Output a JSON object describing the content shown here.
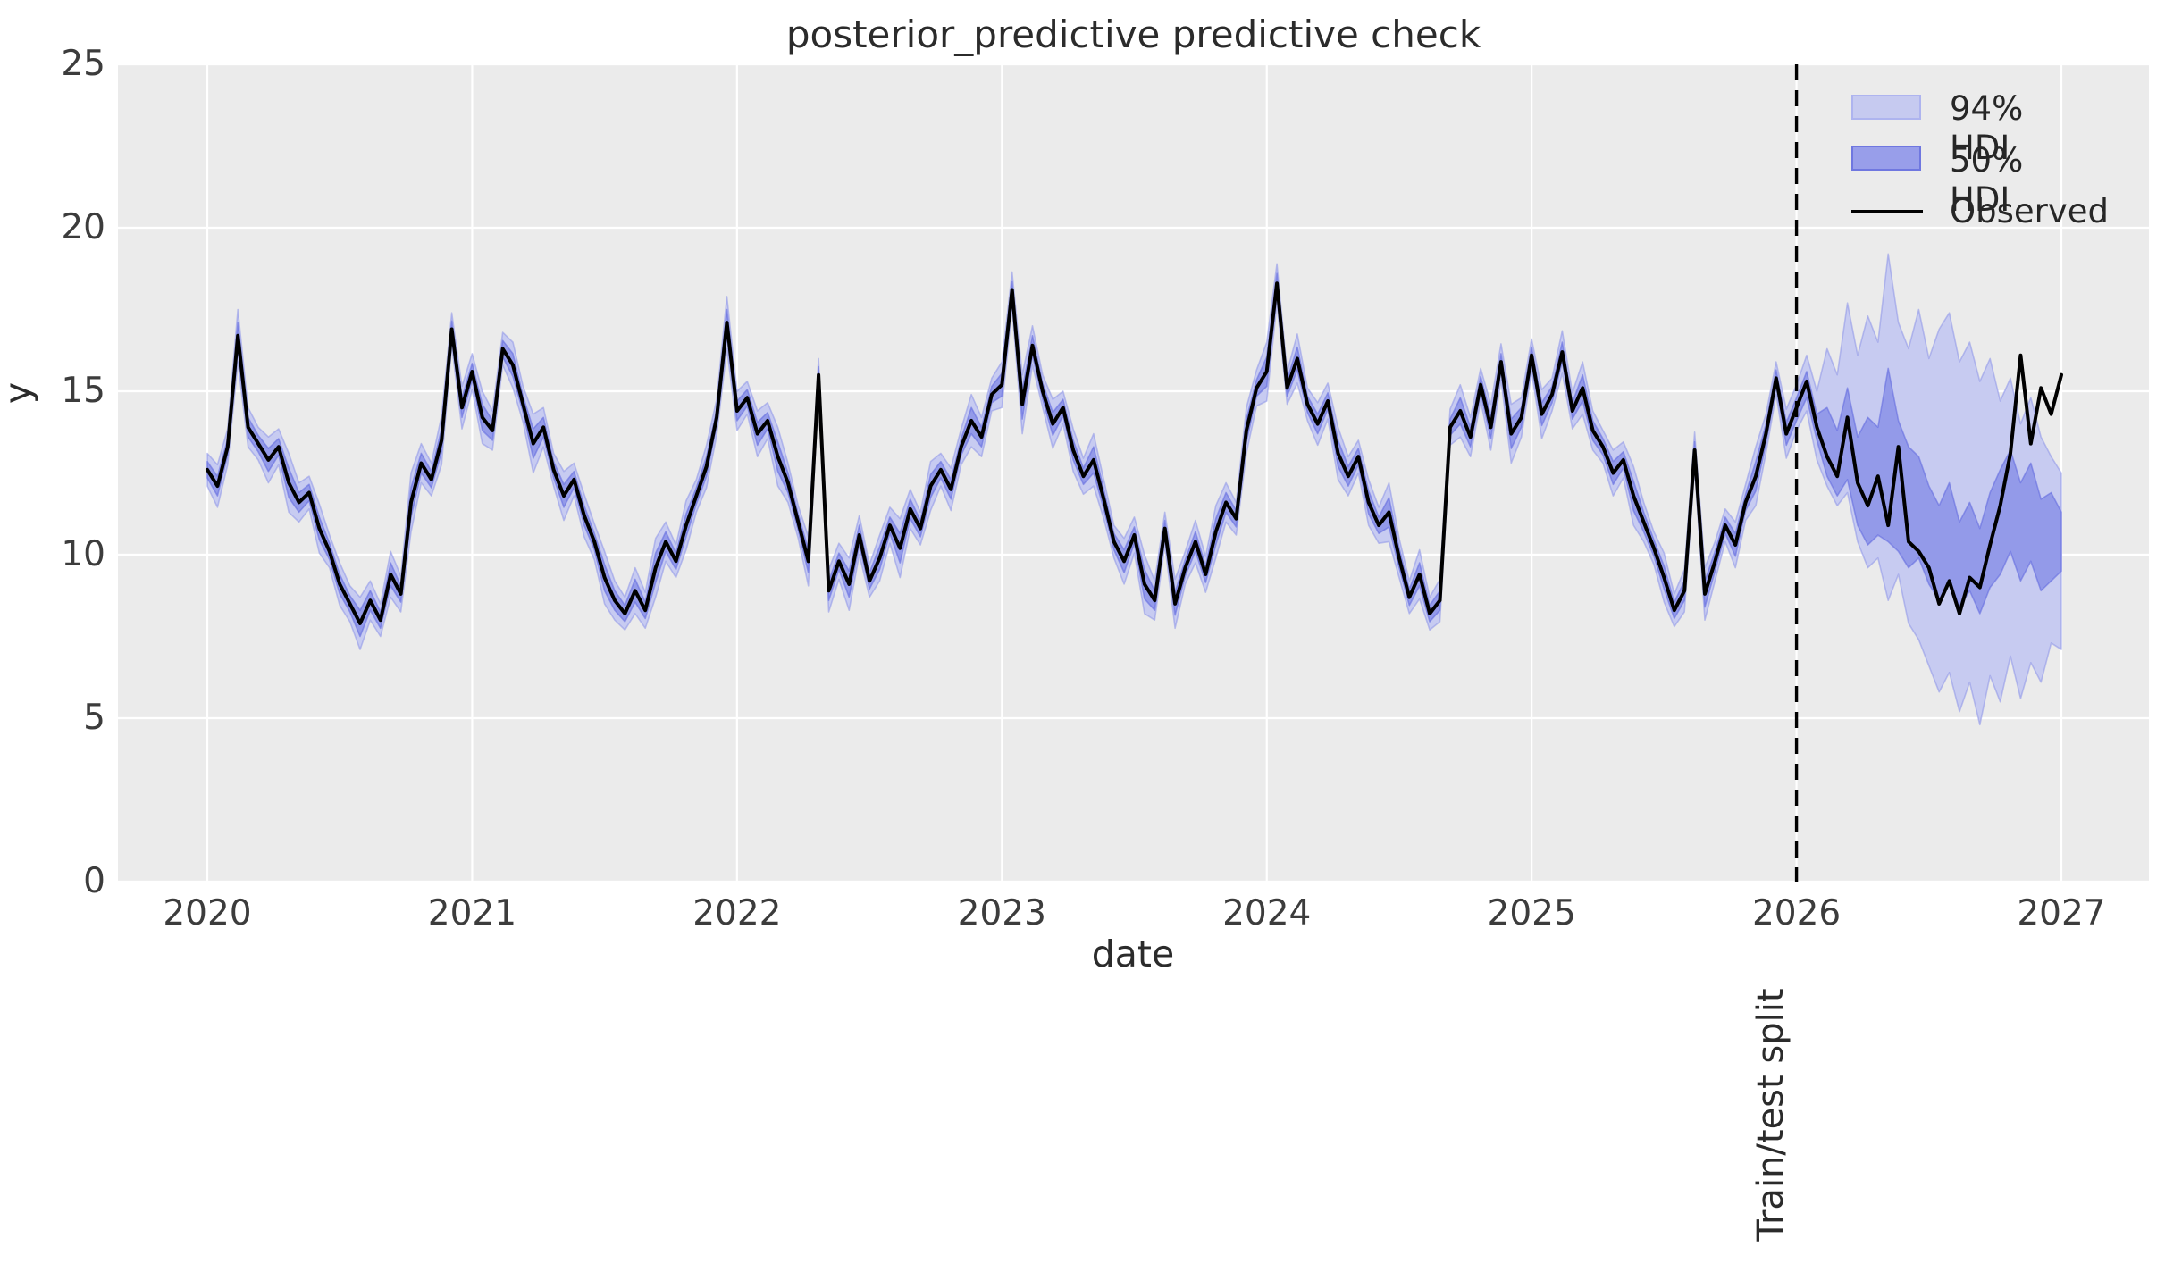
{
  "title": "posterior_predictive predictive check",
  "axes": {
    "xlabel": "date",
    "ylabel": "y",
    "x_tick_labels": [
      "2020",
      "2021",
      "2022",
      "2023",
      "2024",
      "2025",
      "2026",
      "2027"
    ],
    "x_ticks": [
      2020,
      2021,
      2022,
      2023,
      2024,
      2025,
      2026,
      2027
    ],
    "y_tick_labels": [
      "0",
      "5",
      "10",
      "15",
      "20",
      "25"
    ],
    "y_ticks": [
      0,
      5,
      10,
      15,
      20,
      25
    ],
    "ylim": [
      0,
      25
    ],
    "xlim": [
      2019.663,
      2027.331
    ],
    "grid": "white-on-gray"
  },
  "legend": {
    "position": "upper-right",
    "items": [
      {
        "label": "94% HDI",
        "type": "patch",
        "fill": "#c6caf0",
        "edge": "#aeb4ef"
      },
      {
        "label": "50% HDI",
        "type": "patch",
        "fill": "#989eea",
        "edge": "#6f77e0"
      },
      {
        "label": "Observed",
        "type": "line",
        "color": "#000000"
      }
    ]
  },
  "split": {
    "x": 2026,
    "label": "Train/test split",
    "line_style": "dashed",
    "line_color": "#000000"
  },
  "colors": {
    "figure_bg": "#ffffff",
    "plot_bg": "#ebebeb",
    "grid": "#ffffff",
    "hdi94_fill": "#c7cbf1",
    "hdi94_edge": "#8c93e8",
    "hdi50_fill": "#939ae9",
    "hdi50_edge": "#646ce0",
    "observed_line": "#000000",
    "text": "#2b2b2b",
    "tick_text": "#3c3c3c"
  },
  "chart_data": {
    "type": "line",
    "title": "posterior_predictive predictive check",
    "xlabel": "date",
    "ylabel": "y",
    "x_unit": "decimal years, weekly-ish sampling",
    "x_start": 2020.0,
    "x_step": 0.0384615,
    "n_points": 183,
    "train_test_split_x": 2026.0,
    "observed_train": [
      12.6,
      12.1,
      13.3,
      16.7,
      13.9,
      13.4,
      12.9,
      13.3,
      12.2,
      11.6,
      11.9,
      10.8,
      10.1,
      9.1,
      8.5,
      7.9,
      8.6,
      8.0,
      9.4,
      8.8,
      11.6,
      12.8,
      12.3,
      13.5,
      16.9,
      14.5,
      15.6,
      14.2,
      13.8,
      16.3,
      15.8,
      14.6,
      13.4,
      13.9,
      12.6,
      11.8,
      12.3,
      11.2,
      10.4,
      9.3,
      8.6,
      8.2,
      8.9,
      8.3,
      9.6,
      10.4,
      9.8,
      10.9,
      11.8,
      12.7,
      14.2,
      17.1,
      14.4,
      14.8,
      13.7,
      14.1,
      13.0,
      12.2,
      11.0,
      9.8,
      15.5,
      8.9,
      9.8,
      9.1,
      10.6,
      9.2,
      9.9,
      10.9,
      10.2,
      11.4,
      10.8,
      12.1,
      12.6,
      12.0,
      13.3,
      14.1,
      13.6,
      14.9,
      15.2,
      18.1,
      14.6,
      16.4,
      15.0,
      14.0,
      14.5,
      13.2,
      12.4,
      12.9,
      11.7,
      10.4,
      9.8,
      10.6,
      9.1,
      8.6,
      10.8,
      8.5,
      9.6,
      10.4,
      9.4,
      10.7,
      11.6,
      11.1,
      13.8,
      15.1,
      15.6,
      18.3,
      15.1,
      16.0,
      14.6,
      14.0,
      14.7,
      13.1,
      12.4,
      13.0,
      11.6,
      10.9,
      11.3,
      9.9,
      8.7,
      9.4,
      8.2,
      8.6,
      13.9,
      14.4,
      13.6,
      15.2,
      13.9,
      15.9,
      13.7,
      14.2,
      16.1,
      14.3,
      14.9,
      16.2,
      14.4,
      15.1,
      13.8,
      13.3,
      12.5,
      12.9,
      11.8,
      11.0,
      10.2,
      9.3,
      8.3,
      8.9,
      13.2,
      8.8,
      9.8,
      10.9,
      10.3,
      11.6,
      12.4,
      13.7,
      15.4,
      13.7
    ],
    "hdi94_halfwidth_train": {
      "pattern": [
        0.5,
        0.65,
        0.55,
        0.8,
        0.6,
        0.5,
        0.7,
        0.55,
        0.9,
        0.6,
        0.5,
        0.75
      ],
      "repeat": 13
    },
    "hdi50_halfwidth_train": {
      "pattern": [
        0.25,
        0.3,
        0.25,
        0.4,
        0.3,
        0.25,
        0.35,
        0.25,
        0.45,
        0.3,
        0.25,
        0.35
      ],
      "repeat": 13
    },
    "forecast": {
      "x_start": 2026.0,
      "observed": [
        14.5,
        15.3,
        13.9,
        13.0,
        12.4,
        14.2,
        12.2,
        11.5,
        12.4,
        10.9,
        13.3,
        10.4,
        10.1,
        9.6,
        8.5,
        9.2,
        8.2,
        9.3,
        9.0,
        10.3,
        11.5,
        13.1,
        16.1,
        13.4,
        15.1,
        14.3,
        15.5
      ],
      "hdi94_upper": [
        15.2,
        16.1,
        15.0,
        16.3,
        15.5,
        17.7,
        16.1,
        17.3,
        16.5,
        19.2,
        17.1,
        16.3,
        17.5,
        16.0,
        16.9,
        17.4,
        15.9,
        16.5,
        15.3,
        16.0,
        14.7,
        15.4,
        14.0,
        14.8,
        13.6,
        13.0,
        12.5
      ],
      "hdi94_lower": [
        13.8,
        14.4,
        12.9,
        12.1,
        11.5,
        11.9,
        10.4,
        9.6,
        9.9,
        8.6,
        9.4,
        7.9,
        7.4,
        6.6,
        5.8,
        6.4,
        5.2,
        6.1,
        4.8,
        6.3,
        5.5,
        6.9,
        5.6,
        6.7,
        6.1,
        7.3,
        7.1
      ],
      "hdi50_upper": [
        14.8,
        15.6,
        14.3,
        14.5,
        13.8,
        15.1,
        13.6,
        14.2,
        13.9,
        15.7,
        14.1,
        13.3,
        13.0,
        12.1,
        11.5,
        12.2,
        11.0,
        11.6,
        10.8,
        11.9,
        12.6,
        13.2,
        12.2,
        12.8,
        11.7,
        11.9,
        11.3
      ],
      "hdi50_lower": [
        14.1,
        14.8,
        13.5,
        12.4,
        11.8,
        12.3,
        10.9,
        10.3,
        10.6,
        10.4,
        10.1,
        9.6,
        9.9,
        9.1,
        8.6,
        9.2,
        8.4,
        8.9,
        8.2,
        9.0,
        9.4,
        10.1,
        9.2,
        9.8,
        8.9,
        9.2,
        9.5
      ]
    }
  }
}
